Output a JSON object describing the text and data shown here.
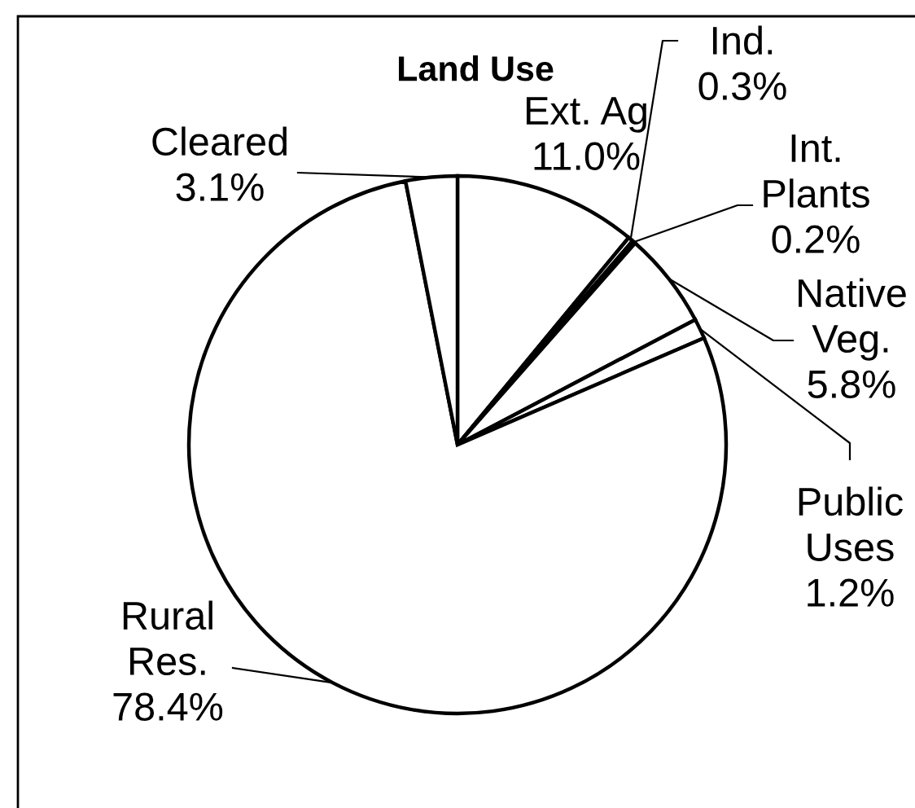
{
  "chart_data": {
    "type": "pie",
    "title": "Land Use",
    "categories": [
      "Ext. Ag",
      "Ind.",
      "Int. Plants",
      "Native Veg.",
      "Public Uses",
      "Rural Res.",
      "Cleared"
    ],
    "values": [
      11.0,
      0.3,
      0.2,
      5.8,
      1.2,
      78.4,
      3.1
    ],
    "colors": [
      "#ffffff",
      "#ffffff",
      "#ffffff",
      "#ffffff",
      "#ffffff",
      "#ffffff",
      "#ffffff"
    ],
    "value_labels": [
      "11.0%",
      "0.3%",
      "0.2%",
      "5.8%",
      "1.2%",
      "78.4%",
      "3.1%"
    ]
  }
}
